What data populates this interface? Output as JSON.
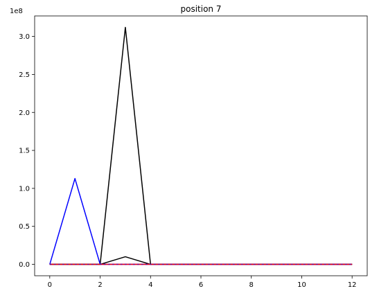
{
  "chart_data": {
    "type": "line",
    "title": "position 7",
    "xlabel": "",
    "ylabel": "",
    "y_offset_label": "1e8",
    "y_scale": 100000000,
    "xlim": [
      -0.6,
      12.6
    ],
    "ylim": [
      -0.15,
      3.27
    ],
    "x_ticks": [
      0,
      2,
      4,
      6,
      8,
      10,
      12
    ],
    "x_tick_labels": [
      "0",
      "2",
      "4",
      "6",
      "8",
      "10",
      "12"
    ],
    "y_ticks": [
      0.0,
      0.5,
      1.0,
      1.5,
      2.0,
      2.5,
      3.0
    ],
    "y_tick_labels": [
      "0.0",
      "0.5",
      "1.0",
      "1.5",
      "2.0",
      "2.5",
      "3.0"
    ],
    "grid": false,
    "legend": "none",
    "x": [
      0,
      1,
      2,
      3,
      4,
      5,
      6,
      7,
      8,
      9,
      10,
      11,
      12
    ],
    "series": [
      {
        "color": "#000000",
        "values": [
          0,
          0,
          0,
          3.12,
          0,
          0,
          0,
          0,
          0,
          0,
          0,
          0,
          0
        ]
      },
      {
        "color": "#000000",
        "values": [
          0,
          0,
          0,
          0.1,
          0,
          0,
          0,
          0,
          0,
          0,
          0,
          0,
          0
        ]
      },
      {
        "color": "#0000ff",
        "values": [
          0,
          1.13,
          0,
          0,
          0,
          0,
          0,
          0,
          0,
          0,
          0,
          0,
          0
        ]
      },
      {
        "color": "#ff0000",
        "values": [
          0,
          0,
          0,
          0,
          0,
          0,
          0,
          0,
          0,
          0,
          0,
          0,
          0
        ]
      },
      {
        "color": "#800080",
        "dashed": true,
        "values": [
          0,
          0,
          0,
          0,
          0,
          0,
          0,
          0,
          0,
          0,
          0,
          0,
          0
        ]
      }
    ]
  }
}
